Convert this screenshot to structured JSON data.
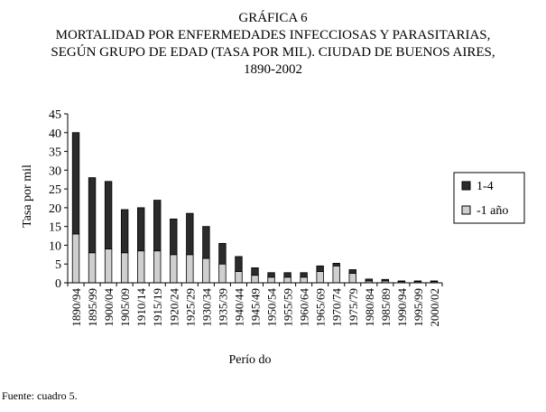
{
  "header": {
    "line1": "GRÁFICA 6",
    "line2": "MORTALIDAD POR ENFERMEDADES INFECCIOSAS Y PARASITARIAS,",
    "line3": "SEGÚN GRUPO DE EDAD (TASA POR MIL). CIUDAD DE BUENOS AIRES,",
    "line4": "1890-2002"
  },
  "footer": {
    "source": "Fuente: cuadro 5."
  },
  "colors": {
    "series_1_4": "#2b2b2b",
    "series_menos1": "#cfcfcf"
  },
  "chart_data": {
    "type": "bar",
    "stacked": true,
    "xlabel": "Perío do",
    "ylabel": "Tasa por mil",
    "ylim": [
      0,
      45
    ],
    "yticks": [
      "0",
      "5",
      "10",
      "15",
      "20",
      "25",
      "30",
      "35",
      "40",
      "45"
    ],
    "grid": false,
    "legend": "right",
    "categories": [
      "1890/94",
      "1895/99",
      "1900/04",
      "1905/09",
      "1910/14",
      "1915/19",
      "1920/24",
      "1925/29",
      "1930/34",
      "1935/39",
      "1940/44",
      "1945/49",
      "1950/54",
      "1955/59",
      "1960/64",
      "1965/69",
      "1970/74",
      "1975/79",
      "1980/84",
      "1985/89",
      "1990/94",
      "1995/99",
      "2000/02"
    ],
    "series": [
      {
        "name": "-1 año",
        "values": [
          13,
          8,
          9,
          8,
          8.5,
          8.5,
          7.5,
          7.5,
          6.5,
          5,
          3,
          2,
          1.5,
          1.5,
          1.5,
          3,
          4.5,
          2.5,
          0.5,
          0.5,
          0.3,
          0.3,
          0.3
        ]
      },
      {
        "name": "1-4",
        "values": [
          27,
          20,
          18,
          11.5,
          11.5,
          13.5,
          9.5,
          11,
          8.5,
          5.5,
          4,
          2,
          1.2,
          1.2,
          1.2,
          1.5,
          0.7,
          1,
          0.5,
          0.4,
          0.2,
          0.2,
          0.2
        ]
      }
    ]
  }
}
